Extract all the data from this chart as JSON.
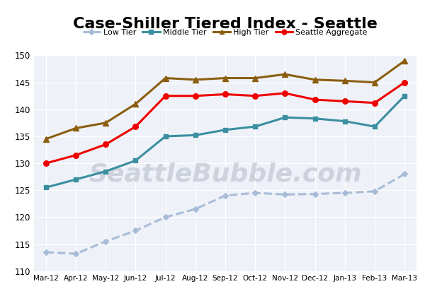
{
  "title": "Case-Shiller Tiered Index - Seattle",
  "x_labels": [
    "Mar-12",
    "Apr-12",
    "May-12",
    "Jun-12",
    "Jul-12",
    "Aug-12",
    "Sep-12",
    "Oct-12",
    "Nov-12",
    "Dec-12",
    "Jan-13",
    "Feb-13",
    "Mar-13"
  ],
  "low_tier": [
    113.5,
    113.2,
    115.5,
    117.5,
    120.0,
    121.5,
    124.0,
    124.5,
    124.2,
    124.3,
    124.5,
    124.8,
    128.0
  ],
  "middle_tier": [
    125.5,
    127.0,
    128.5,
    130.5,
    135.0,
    135.2,
    136.2,
    136.8,
    138.5,
    138.3,
    137.8,
    136.8,
    142.5
  ],
  "high_tier": [
    134.5,
    136.5,
    137.5,
    141.0,
    145.8,
    145.5,
    145.8,
    145.8,
    146.5,
    145.5,
    145.3,
    145.0,
    149.0
  ],
  "seattle_agg": [
    130.0,
    131.5,
    133.5,
    136.8,
    142.5,
    142.5,
    142.8,
    142.5,
    143.0,
    141.8,
    141.5,
    141.2,
    145.0
  ],
  "low_tier_color": "#a8bcd8",
  "middle_tier_color": "#3a8fa0",
  "high_tier_color": "#8b5e10",
  "seattle_agg_color": "#ee0000",
  "ylim": [
    110,
    150
  ],
  "yticks": [
    110,
    115,
    120,
    125,
    130,
    135,
    140,
    145,
    150
  ],
  "watermark": "SeattleBubble.com",
  "background_color": "#ffffff",
  "plot_bg_color": "#eef2f8",
  "grid_color": "#ffffff"
}
